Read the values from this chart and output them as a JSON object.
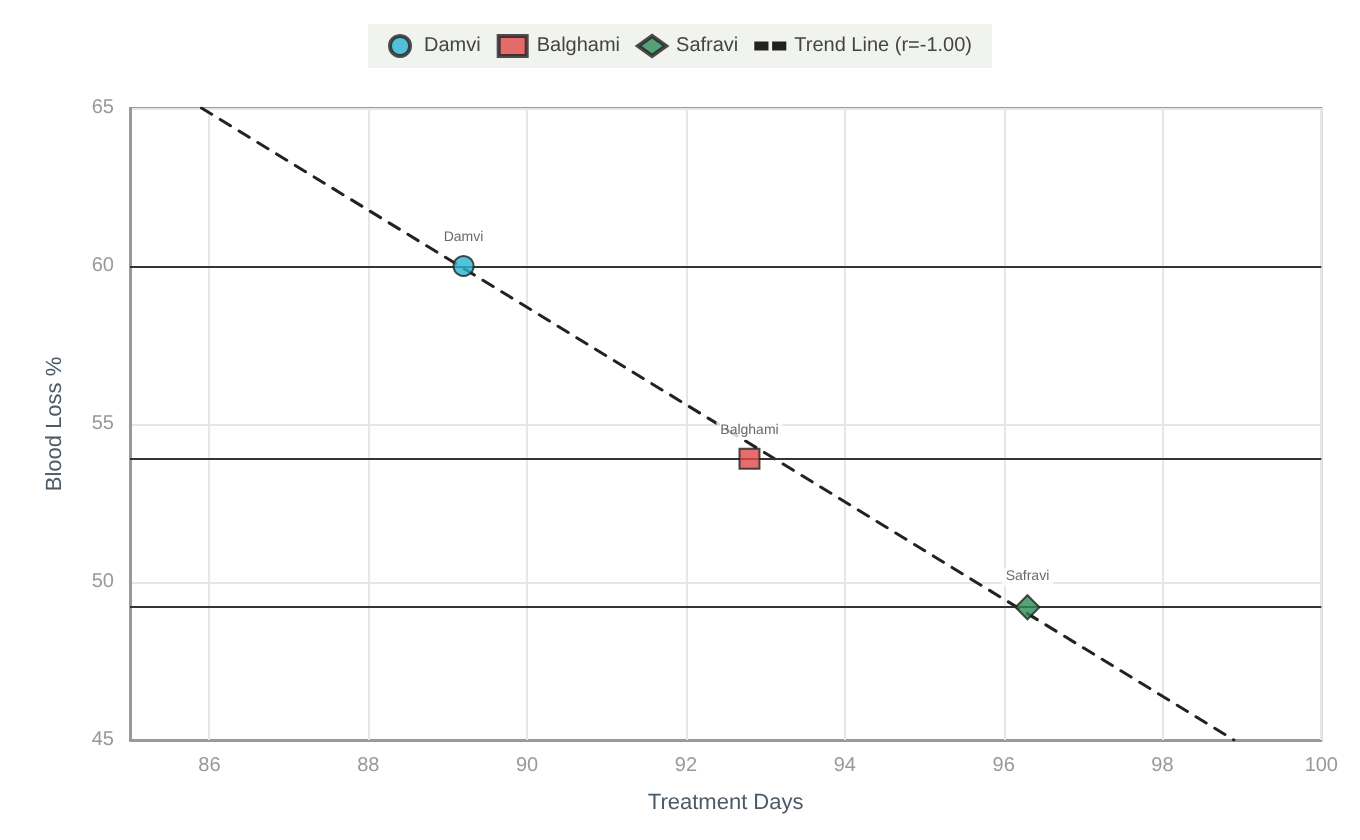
{
  "chart_data": {
    "type": "scatter",
    "xlabel": "Treatment Days",
    "ylabel": "Blood Loss %",
    "xlim": [
      85,
      100
    ],
    "xticks": [
      86,
      88,
      90,
      92,
      94,
      96,
      98,
      100
    ],
    "ylim": [
      45,
      65
    ],
    "yticks": [
      45,
      50,
      55,
      60,
      65
    ],
    "grid": true,
    "legend": "top",
    "series": [
      {
        "name": "Damvi",
        "color": "#29b3d1",
        "marker": "circle",
        "x": [
          89.2
        ],
        "values": [
          60.0
        ]
      },
      {
        "name": "Balghami",
        "color": "#e04848",
        "marker": "square",
        "x": [
          92.8
        ],
        "values": [
          53.9
        ]
      },
      {
        "name": "Safravi",
        "color": "#2e8b57",
        "marker": "diamond",
        "x": [
          96.3
        ],
        "values": [
          49.2
        ]
      },
      {
        "name": "Trend Line (r=-1.00)",
        "type": "line",
        "color": "#222222",
        "marker": "none",
        "line_style": "dashed",
        "x": [
          85.9,
          98.9
        ],
        "values": [
          65,
          45
        ]
      }
    ],
    "ref_lines": [
      {
        "axis": "y",
        "value": 60.0,
        "color": "#333333"
      },
      {
        "axis": "y",
        "value": 53.9,
        "color": "#333333"
      },
      {
        "axis": "y",
        "value": 49.2,
        "color": "#333333"
      }
    ]
  }
}
